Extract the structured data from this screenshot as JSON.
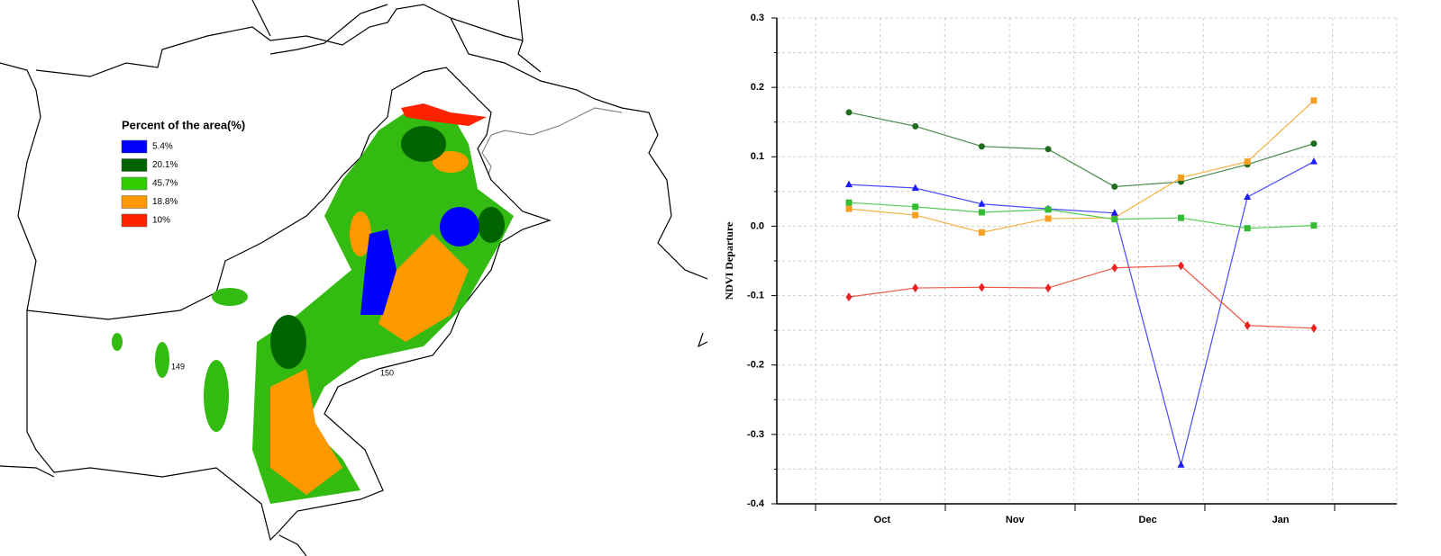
{
  "map": {
    "legend_title": "Percent of the area(%)",
    "legend": [
      {
        "label": "5.4%",
        "color": "#0000ff"
      },
      {
        "label": "20.1%",
        "color": "#006400"
      },
      {
        "label": "45.7%",
        "color": "#33cc00"
      },
      {
        "label": "18.8%",
        "color": "#ff9900"
      },
      {
        "label": "10%",
        "color": "#ff2200"
      }
    ],
    "labels": [
      "149",
      "150"
    ]
  },
  "chart_data": {
    "type": "line",
    "y_label": "NDVI Departure",
    "categories": [
      "Oct",
      null,
      "Nov",
      null,
      "Dec",
      null,
      "Jan",
      null
    ],
    "ylim": [
      -0.4,
      0.3
    ],
    "yticks": [
      -0.4,
      -0.3,
      -0.2,
      -0.1,
      {
        "value": 0,
        "label": "0.0"
      },
      0.1,
      0.2,
      0.3
    ],
    "grid": true,
    "series": [
      {
        "color": "#1f6b1f",
        "line_color": "#4a8a4a",
        "marker": "circle",
        "values": [
          0.164,
          0.144,
          0.115,
          0.111,
          0.057,
          0.064,
          0.089,
          0.119
        ]
      },
      {
        "color": "#f5a020",
        "line_color": "#f5b040",
        "marker": "square",
        "values": [
          0.025,
          0.016,
          -0.009,
          0.011,
          0.012,
          0.07,
          0.093,
          0.181
        ]
      },
      {
        "color": "#1a1aff",
        "line_color": "#4a4aff",
        "marker": "triangle",
        "values": [
          0.06,
          0.055,
          0.032,
          0.025,
          0.019,
          -0.344,
          0.042,
          0.093
        ]
      },
      {
        "color": "#33bb33",
        "line_color": "#55cc55",
        "marker": "square",
        "values": [
          0.034,
          0.028,
          0.02,
          0.024,
          0.01,
          0.012,
          -0.003,
          0.001
        ]
      },
      {
        "color": "#ee2222",
        "line_color": "#ee5544",
        "marker": "diamond",
        "values": [
          -0.102,
          -0.089,
          -0.088,
          -0.089,
          -0.06,
          -0.057,
          -0.143,
          -0.147
        ]
      }
    ]
  }
}
